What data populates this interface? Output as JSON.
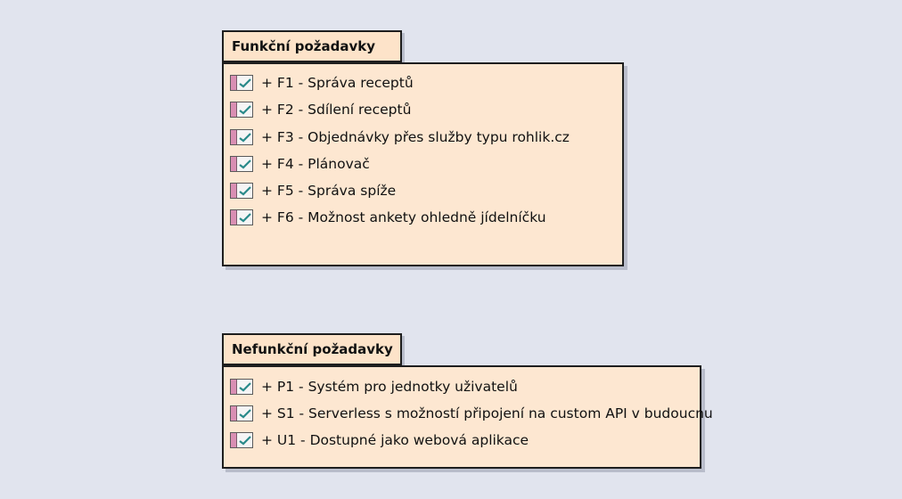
{
  "packages": [
    {
      "title": "Funkční požadavky",
      "items": [
        "+ F1 - Správa receptů",
        "+ F2 - Sdílení receptů",
        "+ F3 - Objednávky přes služby typu rohlik.cz",
        "+ F4 - Plánovač",
        "+ F5 - Správa spíže",
        "+ F6 - Možnost ankety ohledně jídelníčku"
      ]
    },
    {
      "title": "Nefunkční požadavky",
      "items": [
        "+ P1 - Systém pro jednotky uživatelů",
        "+ S1 - Serverless s možností připojení na custom API v budoucnu",
        "+ U1 - Dostupné jako webová aplikace"
      ]
    }
  ],
  "icon": "requirement-check-icon",
  "colors": {
    "background": "#e1e4ee",
    "package_fill": "#fde7d1",
    "tab_fill": "#fde3c9",
    "icon_bar": "#d98fb3",
    "check": "#2a8a8a"
  }
}
